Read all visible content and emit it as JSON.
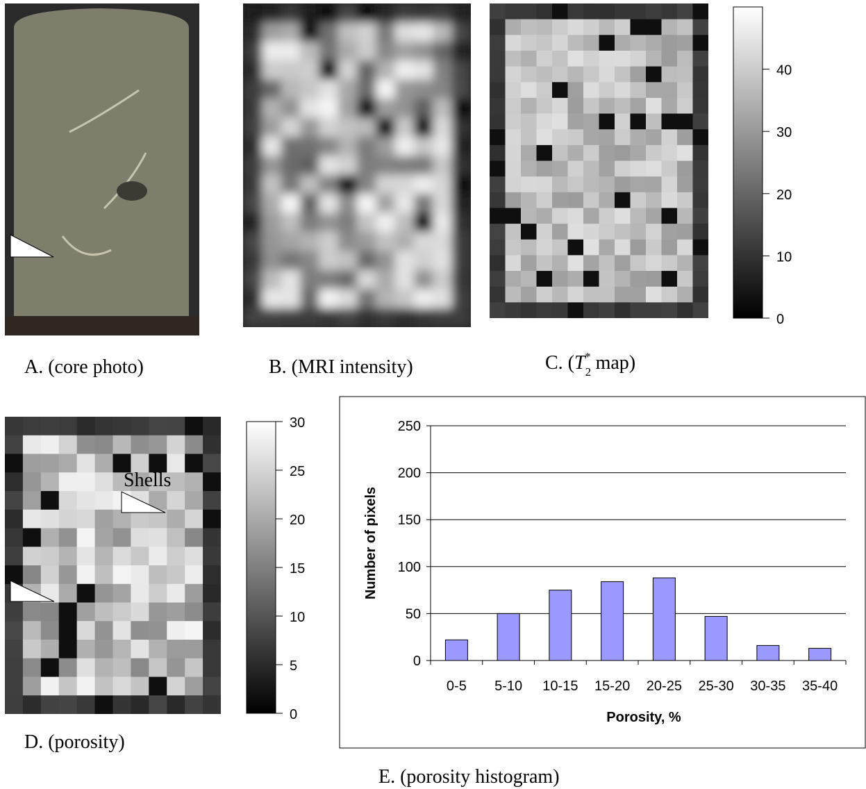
{
  "panels": {
    "a": {
      "caption": "A. (core photo)"
    },
    "b": {
      "caption": "B. (MRI intensity)"
    },
    "c": {
      "caption_parts": [
        "C. (",
        "T",
        "2",
        "*",
        " map)"
      ],
      "colorbar": {
        "lim": [
          0,
          50
        ],
        "ticks": [
          0,
          10,
          20,
          30,
          40
        ]
      }
    },
    "d": {
      "caption": "D. (porosity)",
      "annotation": "Shells",
      "colorbar": {
        "lim": [
          0,
          30
        ],
        "ticks": [
          0,
          5,
          10,
          15,
          20,
          25,
          30
        ]
      }
    },
    "e": {
      "caption": "E. (porosity histogram)"
    }
  },
  "chart_data": {
    "type": "bar",
    "categories": [
      "0-5",
      "5-10",
      "10-15",
      "15-20",
      "20-25",
      "25-30",
      "30-35",
      "35-40"
    ],
    "values": [
      22,
      50,
      75,
      84,
      88,
      47,
      16,
      13
    ],
    "color": "#9999ff",
    "ylim": [
      0,
      250
    ],
    "yticks": [
      0,
      50,
      100,
      150,
      200,
      250
    ],
    "grid": true,
    "x_label": "Porosity, %",
    "y_label": "Number of pixels"
  }
}
